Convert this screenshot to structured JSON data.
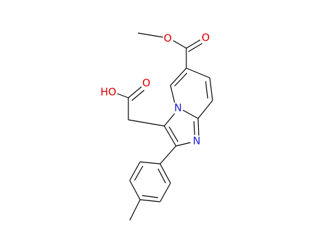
{
  "atoms": [
    {
      "label": "O"
    },
    {
      "label": "O"
    },
    {
      "label": "HO"
    },
    {
      "label": "O"
    },
    {
      "label": "N"
    },
    {
      "label": "N"
    }
  ]
}
